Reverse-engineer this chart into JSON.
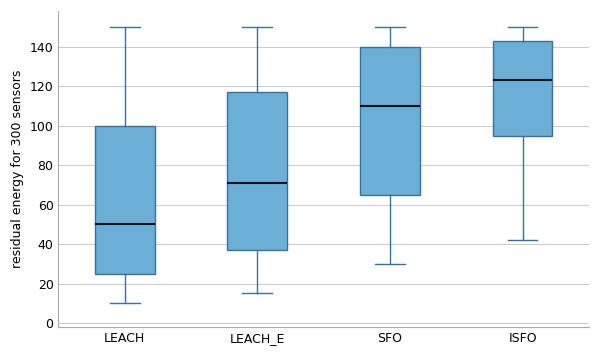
{
  "categories": [
    "LEACH",
    "LEACH_E",
    "SFO",
    "ISFO"
  ],
  "box_stats": [
    {
      "whislo": 10,
      "q1": 25,
      "med": 50,
      "q3": 100,
      "whishi": 150
    },
    {
      "whislo": 15,
      "q1": 37,
      "med": 71,
      "q3": 117,
      "whishi": 150
    },
    {
      "whislo": 30,
      "q1": 65,
      "med": 110,
      "q3": 140,
      "whishi": 150
    },
    {
      "whislo": 42,
      "q1": 95,
      "med": 123,
      "q3": 143,
      "whishi": 150
    }
  ],
  "box_color": "#6baed6",
  "box_edge_color": "#3a6fa0",
  "median_color": "#111111",
  "whisker_color": "#3a6fa0",
  "cap_color": "#3a6fa0",
  "ylabel": "residual energy for 300 sensors",
  "ylim": [
    -2,
    158
  ],
  "yticks": [
    0,
    20,
    40,
    60,
    80,
    100,
    120,
    140
  ],
  "background_color": "#ffffff",
  "grid_color": "#cccccc",
  "box_width": 0.45,
  "linewidth": 1.0,
  "median_linewidth": 1.5,
  "tick_fontsize": 9,
  "ylabel_fontsize": 9
}
